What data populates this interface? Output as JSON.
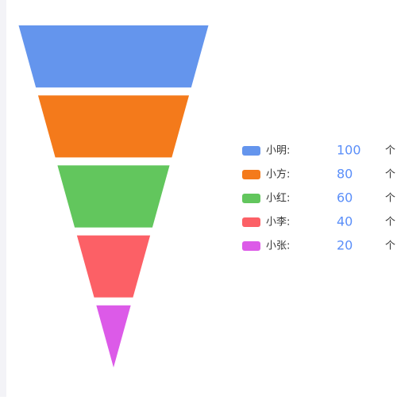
{
  "chart_data": {
    "type": "funnel",
    "categories": [
      "小明:",
      "小方:",
      "小红:",
      "小李:",
      "小张:"
    ],
    "values": [
      100,
      80,
      60,
      40,
      20
    ],
    "colors": [
      "#6495ed",
      "#f47a1b",
      "#62c65d",
      "#fc6066",
      "#dc5ae8"
    ],
    "unit": "个",
    "ylim": [
      0,
      100
    ]
  }
}
